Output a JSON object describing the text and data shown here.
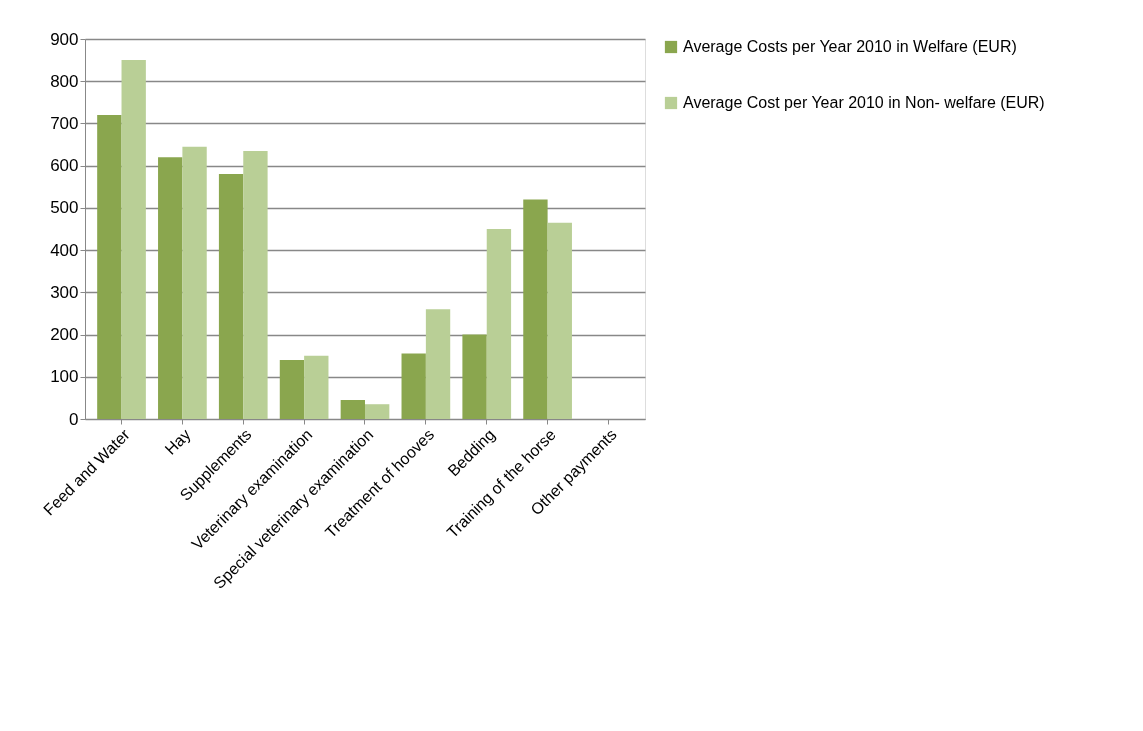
{
  "chart_data": {
    "type": "bar",
    "categories": [
      "Feed and Water",
      "Hay",
      "Supplements",
      "Veterinary examination",
      "Special veterinary examination",
      "Treatment of hooves",
      "Bedding",
      "Training of the horse",
      "Other payments"
    ],
    "series": [
      {
        "name": "Average Costs per Year 2010 in Welfare (EUR)",
        "color": "#8aa64e",
        "values": [
          720,
          620,
          580,
          140,
          45,
          155,
          200,
          520,
          0
        ]
      },
      {
        "name": "Average Cost per Year 2010 in Non- welfare (EUR)",
        "color": "#b9cf96",
        "values": [
          850,
          645,
          635,
          150,
          35,
          260,
          450,
          465,
          0
        ]
      }
    ],
    "ylim": [
      0,
      900
    ],
    "yticks": [
      0,
      100,
      200,
      300,
      400,
      500,
      600,
      700,
      800,
      900
    ],
    "grid": "y",
    "legend": "right"
  }
}
